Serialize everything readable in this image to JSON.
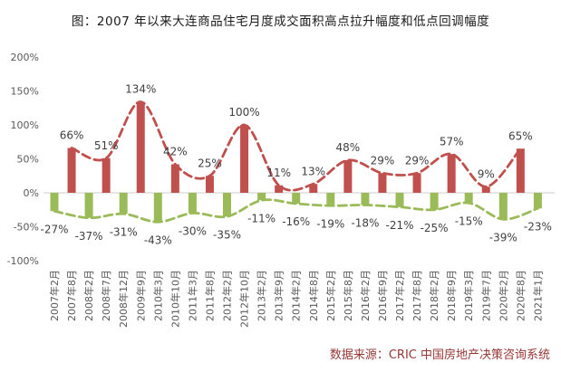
{
  "page": {
    "title": "图：2007 年以来大连商品住宅月度成交面积高点拉升幅度和低点回调幅度",
    "source": "数据来源：CRIC 中国房地产决策咨询系统"
  },
  "colors": {
    "positive_bar": "#C0504D",
    "negative_bar": "#9BBB59",
    "positive_line": "#C0504D",
    "negative_line": "#9BBB59",
    "zero_axis": "#D6D6D6",
    "tick_text": "#595959",
    "data_label_text": "#3f3f3f",
    "title_text": "#1a1a1a",
    "source_text": "#953735"
  },
  "chart_data": {
    "type": "bar",
    "title": "图：2007 年以来大连商品住宅月度成交面积高点拉升幅度和低点回调幅度",
    "source": "数据来源：CRIC 中国房地产决策咨询系统",
    "categories": [
      "2007年2月",
      "2007年8月",
      "2008年2月",
      "2008年7月",
      "2008年12月",
      "2009年9月",
      "2010年3月",
      "2010年10月",
      "2011年3月",
      "2011年8月",
      "2012年2月",
      "2012年10月",
      "2013年2月",
      "2013年9月",
      "2014年2月",
      "2014年8月",
      "2015年2月",
      "2015年8月",
      "2016年2月",
      "2016年9月",
      "2017年2月",
      "2017年8月",
      "2018年2月",
      "2018年9月",
      "2019年3月",
      "2019年7月",
      "2020年2月",
      "2020年8月",
      "2021年1月"
    ],
    "values": [
      -27,
      66,
      -37,
      51,
      -31,
      134,
      -43,
      42,
      -30,
      25,
      -35,
      100,
      -11,
      11,
      -16,
      13,
      -19,
      48,
      -18,
      29,
      -21,
      29,
      -25,
      57,
      -15,
      9,
      -39,
      65,
      -23
    ],
    "bar_labels": [
      "-27%",
      "66%",
      "-37%",
      "51%",
      "-31%",
      "134%",
      "-43%",
      "42%",
      "-30%",
      "25%",
      "-35%",
      "100%",
      "-11%",
      "11%",
      "-16%",
      "13%",
      "-19%",
      "48%",
      "-18%",
      "29%",
      "-21%",
      "29%",
      "-25%",
      "57%",
      "-15%",
      "9%",
      "-39%",
      "65%",
      "-23%"
    ],
    "y_ticks": [
      "200%",
      "150%",
      "100%",
      "50%",
      "0%",
      "-50%",
      "-100%"
    ],
    "ylim": [
      -100,
      200
    ],
    "grid": false,
    "legend": "none",
    "trend": "smooth dashed spline through positive bar tops (red) and through negative bar bottoms (green)"
  }
}
